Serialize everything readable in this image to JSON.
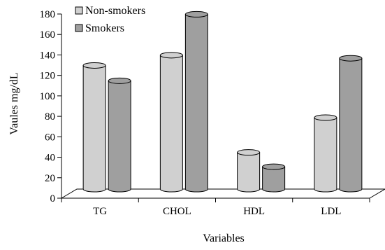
{
  "chart_data": {
    "type": "bar",
    "style": "3d-cylinder",
    "categories": [
      "TG",
      "CHOL",
      "HDL",
      "LDL"
    ],
    "series": [
      {
        "name": "Non-smokers",
        "values": [
          127,
          137,
          42,
          76
        ],
        "color": "#d0d0d0"
      },
      {
        "name": "Smokers",
        "values": [
          112,
          177,
          28,
          134
        ],
        "color": "#9f9f9f"
      }
    ],
    "xlabel": "Variables",
    "ylabel": "Vaules mg/dL",
    "ylim": [
      0,
      180
    ],
    "yticks": [
      "0",
      "20",
      "40",
      "60",
      "80",
      "100",
      "120",
      "140",
      "160",
      "180"
    ],
    "grid": false,
    "legend_position": "top-left"
  }
}
